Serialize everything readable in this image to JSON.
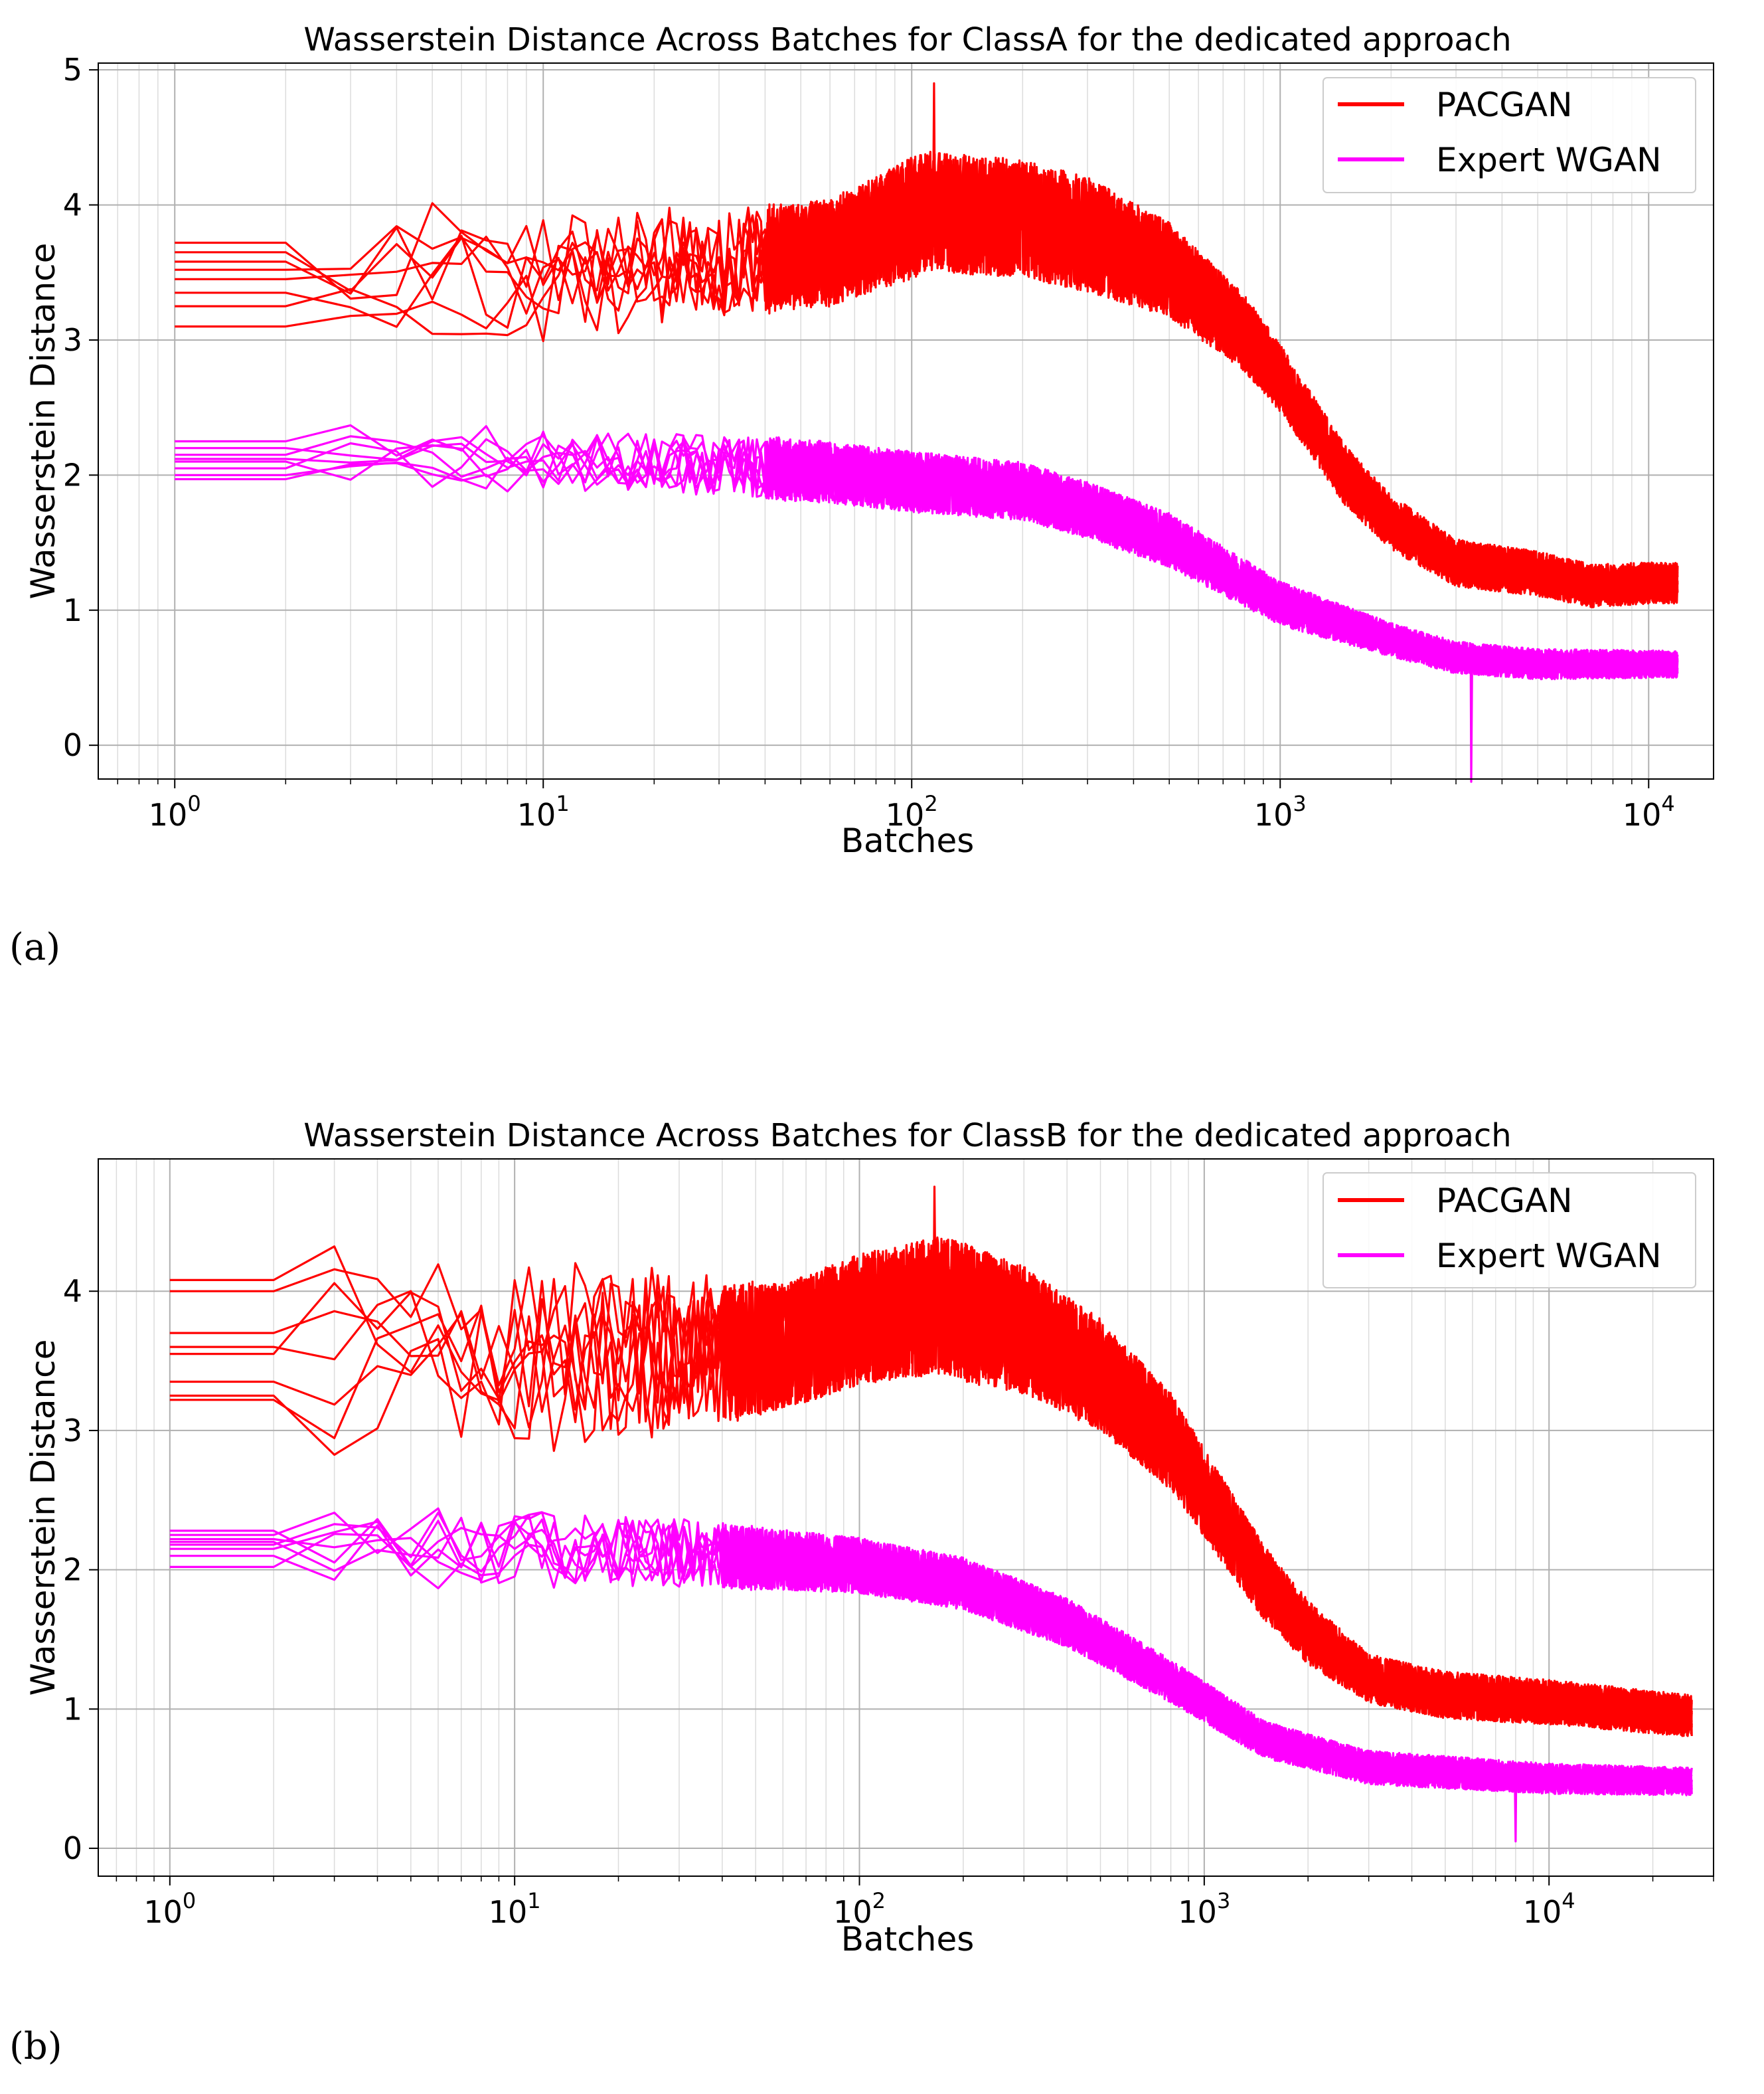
{
  "figure": {
    "panel_labels": [
      "(a)",
      "(b)"
    ]
  },
  "chart_data": [
    {
      "type": "line",
      "title": "Wasserstein Distance Across Batches for ClassA for the dedicated approach",
      "xlabel": "Batches",
      "ylabel": "Wasserstein Distance",
      "xscale": "log",
      "xlim": [
        0.62,
        15000
      ],
      "ylim": [
        -0.25,
        5.05
      ],
      "xticks": [
        {
          "base": "10",
          "exp": "0",
          "value": 1
        },
        {
          "base": "10",
          "exp": "1",
          "value": 10
        },
        {
          "base": "10",
          "exp": "2",
          "value": 100
        },
        {
          "base": "10",
          "exp": "3",
          "value": 1000
        },
        {
          "base": "10",
          "exp": "4",
          "value": 10000
        }
      ],
      "yticks": [
        0,
        1,
        2,
        3,
        4,
        5
      ],
      "grid": true,
      "legend_position": "top-right",
      "series": [
        {
          "name": "PACGAN",
          "color": "#ff0000",
          "runs": 8,
          "anchors": [
            [
              1,
              3.52
            ],
            [
              20,
              3.58
            ],
            [
              60,
              3.65
            ],
            [
              110,
              3.95
            ],
            [
              200,
              3.9
            ],
            [
              300,
              3.78
            ],
            [
              500,
              3.52
            ],
            [
              800,
              3.05
            ],
            [
              1000,
              2.72
            ],
            [
              1500,
              2.0
            ],
            [
              2000,
              1.65
            ],
            [
              3000,
              1.35
            ],
            [
              5000,
              1.27
            ],
            [
              7000,
              1.18
            ],
            [
              10000,
              1.2
            ],
            [
              12000,
              1.2
            ]
          ],
          "start_values": [
            3.72,
            3.65,
            3.58,
            3.52,
            3.45,
            3.35,
            3.25,
            3.1
          ],
          "band_width": [
            [
              1,
              0.75
            ],
            [
              50,
              0.75
            ],
            [
              100,
              0.9
            ],
            [
              300,
              0.85
            ],
            [
              1000,
              0.5
            ],
            [
              3000,
              0.35
            ],
            [
              12000,
              0.3
            ]
          ],
          "spike": {
            "x": 115,
            "y": 4.9
          }
        },
        {
          "name": "Expert WGAN",
          "color": "#ff00ff",
          "runs": 8,
          "anchors": [
            [
              1,
              2.1
            ],
            [
              20,
              2.08
            ],
            [
              60,
              2.02
            ],
            [
              100,
              1.95
            ],
            [
              200,
              1.88
            ],
            [
              300,
              1.74
            ],
            [
              500,
              1.52
            ],
            [
              1000,
              1.05
            ],
            [
              2000,
              0.78
            ],
            [
              3000,
              0.65
            ],
            [
              5000,
              0.6
            ],
            [
              12000,
              0.6
            ]
          ],
          "start_values": [
            2.25,
            2.2,
            2.15,
            2.1,
            2.05,
            2.0,
            1.97,
            2.12
          ],
          "band_width": [
            [
              1,
              0.3
            ],
            [
              20,
              0.45
            ],
            [
              100,
              0.45
            ],
            [
              500,
              0.4
            ],
            [
              2000,
              0.25
            ],
            [
              12000,
              0.2
            ]
          ],
          "spike": {
            "x": 3300,
            "y": -0.27
          }
        }
      ]
    },
    {
      "type": "line",
      "title": "Wasserstein Distance Across Batches for ClassB for the dedicated approach",
      "xlabel": "Batches",
      "ylabel": "Wasserstein Distance",
      "xscale": "log",
      "xlim": [
        0.62,
        30000
      ],
      "ylim": [
        -0.2,
        4.95
      ],
      "xticks": [
        {
          "base": "10",
          "exp": "0",
          "value": 1
        },
        {
          "base": "10",
          "exp": "1",
          "value": 10
        },
        {
          "base": "10",
          "exp": "2",
          "value": 100
        },
        {
          "base": "10",
          "exp": "3",
          "value": 1000
        },
        {
          "base": "10",
          "exp": "4",
          "value": 10000
        }
      ],
      "yticks": [
        0,
        1,
        2,
        3,
        4
      ],
      "grid": true,
      "legend_position": "top-right",
      "series": [
        {
          "name": "PACGAN",
          "color": "#ff0000",
          "runs": 8,
          "anchors": [
            [
              1,
              3.55
            ],
            [
              20,
              3.5
            ],
            [
              60,
              3.6
            ],
            [
              100,
              3.8
            ],
            [
              170,
              3.9
            ],
            [
              300,
              3.72
            ],
            [
              500,
              3.4
            ],
            [
              800,
              2.92
            ],
            [
              1000,
              2.55
            ],
            [
              1500,
              1.9
            ],
            [
              2000,
              1.55
            ],
            [
              3000,
              1.22
            ],
            [
              5000,
              1.1
            ],
            [
              10000,
              1.05
            ],
            [
              26000,
              0.95
            ]
          ],
          "start_values": [
            4.08,
            4.0,
            3.7,
            3.6,
            3.55,
            3.35,
            3.25,
            3.22
          ],
          "band_width": [
            [
              1,
              0.9
            ],
            [
              10,
              1.2
            ],
            [
              60,
              0.9
            ],
            [
              200,
              1.0
            ],
            [
              800,
              0.7
            ],
            [
              3000,
              0.35
            ],
            [
              26000,
              0.3
            ]
          ],
          "spike": {
            "x": 165,
            "y": 4.75
          }
        },
        {
          "name": "Expert WGAN",
          "color": "#ff00ff",
          "runs": 8,
          "anchors": [
            [
              1,
              2.18
            ],
            [
              20,
              2.12
            ],
            [
              60,
              2.07
            ],
            [
              100,
              2.03
            ],
            [
              200,
              1.9
            ],
            [
              400,
              1.62
            ],
            [
              800,
              1.2
            ],
            [
              1500,
              0.78
            ],
            [
              3000,
              0.58
            ],
            [
              10000,
              0.5
            ],
            [
              26000,
              0.48
            ]
          ],
          "start_values": [
            2.28,
            2.25,
            2.2,
            2.18,
            2.15,
            2.1,
            2.02,
            2.22
          ],
          "band_width": [
            [
              1,
              0.3
            ],
            [
              10,
              0.55
            ],
            [
              100,
              0.4
            ],
            [
              400,
              0.35
            ],
            [
              2000,
              0.25
            ],
            [
              26000,
              0.2
            ]
          ],
          "spike": {
            "x": 8000,
            "y": 0.05
          }
        }
      ]
    }
  ]
}
